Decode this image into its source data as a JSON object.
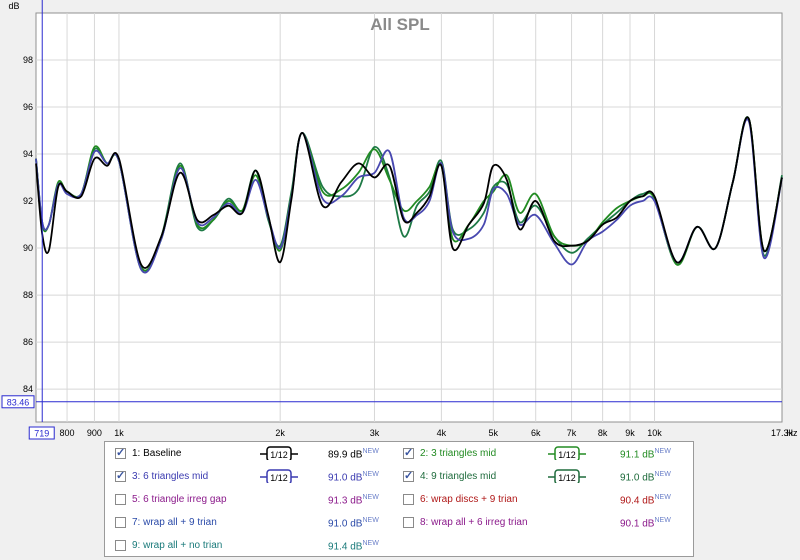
{
  "window": {
    "title": "All SPL"
  },
  "chart_data": {
    "type": "line",
    "title": "All SPL",
    "ylabel": "dB",
    "xlabel": "Hz",
    "x_scale": "log",
    "xlim": [
      700,
      17300
    ],
    "ylim": [
      82.6,
      100
    ],
    "y_ticks": [
      84,
      86,
      88,
      90,
      92,
      94,
      96,
      98
    ],
    "x_ticks": [
      {
        "v": 800,
        "t": "800"
      },
      {
        "v": 900,
        "t": "900"
      },
      {
        "v": 1000,
        "t": "1k"
      },
      {
        "v": 2000,
        "t": "2k"
      },
      {
        "v": 3000,
        "t": "3k"
      },
      {
        "v": 4000,
        "t": "4k"
      },
      {
        "v": 5000,
        "t": "5k"
      },
      {
        "v": 6000,
        "t": "6k"
      },
      {
        "v": 7000,
        "t": "7k"
      },
      {
        "v": 8000,
        "t": "8k"
      },
      {
        "v": 9000,
        "t": "9k"
      },
      {
        "v": 10000,
        "t": "10k"
      },
      {
        "v": 17300,
        "t": "17.3k"
      }
    ],
    "cursor": {
      "x": 719,
      "x_label": "719",
      "y": 83.46,
      "y_label": "83.46"
    },
    "series": [
      {
        "name": "1: Baseline",
        "color": "#000000",
        "x": [
          700,
          719,
          740,
          770,
          800,
          850,
          900,
          950,
          1000,
          1100,
          1200,
          1300,
          1400,
          1500,
          1600,
          1700,
          1800,
          1900,
          2000,
          2100,
          2200,
          2400,
          2600,
          2800,
          3000,
          3200,
          3400,
          3600,
          3800,
          4000,
          4200,
          4500,
          4800,
          5000,
          5300,
          5600,
          6000,
          6500,
          7000,
          7500,
          8000,
          8500,
          9000,
          9500,
          10000,
          11000,
          12000,
          13000,
          14000,
          15000,
          16000,
          17300
        ],
        "y": [
          93.6,
          90.6,
          89.9,
          92.6,
          92.4,
          92.2,
          93.8,
          93.5,
          93.8,
          89.3,
          90.5,
          93.2,
          91.2,
          91.4,
          91.8,
          91.5,
          93.3,
          91.4,
          89.4,
          92.1,
          94.9,
          91.8,
          92.8,
          93.6,
          93.0,
          93.5,
          91.2,
          91.5,
          92.2,
          93.5,
          90.0,
          91.0,
          91.9,
          93.5,
          92.9,
          90.8,
          92.0,
          90.3,
          90.1,
          90.3,
          91.0,
          91.3,
          92.0,
          92.2,
          92.2,
          89.4,
          90.9,
          90.0,
          92.8,
          95.5,
          89.9,
          93.0
        ]
      },
      {
        "name": "2: 3 triangles mid",
        "color": "#228b22",
        "x": [
          700,
          719,
          740,
          770,
          800,
          850,
          900,
          950,
          1000,
          1100,
          1200,
          1300,
          1400,
          1500,
          1600,
          1700,
          1800,
          1900,
          2000,
          2100,
          2200,
          2400,
          2600,
          2800,
          3000,
          3200,
          3400,
          3600,
          3800,
          4000,
          4200,
          4500,
          4800,
          5000,
          5300,
          5600,
          6000,
          6500,
          7000,
          7500,
          8000,
          8500,
          9000,
          9500,
          10000,
          11000,
          12000,
          13000,
          14000,
          15000,
          16000,
          17300
        ],
        "y": [
          93.8,
          91.0,
          91.0,
          92.8,
          92.4,
          92.3,
          94.3,
          93.6,
          93.7,
          89.2,
          90.4,
          93.5,
          91.0,
          91.2,
          92.0,
          91.6,
          93.1,
          91.3,
          89.9,
          92.3,
          94.9,
          92.4,
          92.5,
          93.2,
          94.2,
          92.9,
          91.6,
          92.0,
          92.6,
          93.5,
          90.4,
          91.0,
          92.0,
          92.4,
          93.1,
          91.5,
          92.3,
          90.5,
          90.1,
          90.3,
          91.1,
          91.7,
          92.0,
          92.2,
          92.1,
          89.3,
          90.9,
          90.0,
          92.8,
          95.5,
          89.9,
          93.0
        ]
      },
      {
        "name": "3: 6 triangles mid",
        "color": "#4848b0",
        "x": [
          700,
          719,
          740,
          770,
          800,
          850,
          900,
          950,
          1000,
          1100,
          1200,
          1300,
          1400,
          1500,
          1600,
          1700,
          1800,
          1900,
          2000,
          2100,
          2200,
          2400,
          2600,
          2800,
          3000,
          3200,
          3400,
          3600,
          3800,
          4000,
          4200,
          4500,
          4800,
          5000,
          5300,
          5600,
          6000,
          6500,
          7000,
          7500,
          8000,
          8500,
          9000,
          9500,
          10000,
          11000,
          12000,
          13000,
          14000,
          15000,
          16000,
          17300
        ],
        "y": [
          93.8,
          91.1,
          91.0,
          92.7,
          92.3,
          92.3,
          94.1,
          93.6,
          93.7,
          89.1,
          90.4,
          93.4,
          91.1,
          91.3,
          91.9,
          91.5,
          92.9,
          91.3,
          90.0,
          92.2,
          94.9,
          92.1,
          92.2,
          93.0,
          93.2,
          94.1,
          91.3,
          91.4,
          92.0,
          93.6,
          90.7,
          90.4,
          91.0,
          92.5,
          92.3,
          91.0,
          91.4,
          90.2,
          89.3,
          90.3,
          90.7,
          91.2,
          91.8,
          92.0,
          92.0,
          89.4,
          90.9,
          90.0,
          92.8,
          95.4,
          89.6,
          93.0
        ]
      },
      {
        "name": "4: 9 triangles mid",
        "color": "#1e7a46",
        "x": [
          700,
          719,
          740,
          770,
          800,
          850,
          900,
          950,
          1000,
          1100,
          1200,
          1300,
          1400,
          1500,
          1600,
          1700,
          1800,
          1900,
          2000,
          2100,
          2200,
          2400,
          2600,
          2800,
          3000,
          3200,
          3400,
          3600,
          3800,
          4000,
          4200,
          4500,
          4800,
          5000,
          5300,
          5600,
          6000,
          6500,
          7000,
          7500,
          8000,
          8500,
          9000,
          9500,
          10000,
          11000,
          12000,
          13000,
          14000,
          15000,
          16000,
          17300
        ],
        "y": [
          93.8,
          91.1,
          91.0,
          92.7,
          92.4,
          92.3,
          94.2,
          93.6,
          93.7,
          89.1,
          90.5,
          93.6,
          90.9,
          91.2,
          92.1,
          91.6,
          93.3,
          91.2,
          90.1,
          92.4,
          94.9,
          92.6,
          92.2,
          92.5,
          94.3,
          93.0,
          90.5,
          91.8,
          92.4,
          93.7,
          90.8,
          90.8,
          91.5,
          92.6,
          92.7,
          91.1,
          91.8,
          90.5,
          89.8,
          90.4,
          91.0,
          91.5,
          92.0,
          92.3,
          92.1,
          89.3,
          90.9,
          90.0,
          92.8,
          95.5,
          89.7,
          93.1
        ]
      }
    ]
  },
  "legend": {
    "filter_label": "1/12",
    "new_tag": "NEW",
    "items": [
      {
        "label": "1: Baseline",
        "value": "89.9 dB",
        "checked": true,
        "color": "#000000",
        "smooth_color": "#000000"
      },
      {
        "label": "2: 3 triangles mid",
        "value": "91.1 dB",
        "checked": true,
        "color": "#228b22",
        "smooth_color": "#228b22"
      },
      {
        "label": "3: 6 triangles mid",
        "value": "91.0 dB",
        "checked": true,
        "color": "#3a3ab0",
        "smooth_color": "#3a3ab0"
      },
      {
        "label": "4: 9 triangles mid",
        "value": "91.0 dB",
        "checked": true,
        "color": "#1e6b3c",
        "smooth_color": "#1e6b3c"
      },
      {
        "label": "5: 6 triangle irreg gap",
        "value": "91.3 dB",
        "checked": false,
        "color": "#8b1a8b"
      },
      {
        "label": "6: wrap discs + 9 trian",
        "value": "90.4 dB",
        "checked": false,
        "color": "#b01818"
      },
      {
        "label": "7: wrap all + 9 trian",
        "value": "91.0 dB",
        "checked": false,
        "color": "#2a4aa8"
      },
      {
        "label": "8: wrap all + 6 irreg trian",
        "value": "90.1 dB",
        "checked": false,
        "color": "#8b1a8b"
      },
      {
        "label": "9: wrap all + no trian",
        "value": "91.4 dB",
        "checked": false,
        "color": "#1a7a7a"
      }
    ]
  }
}
